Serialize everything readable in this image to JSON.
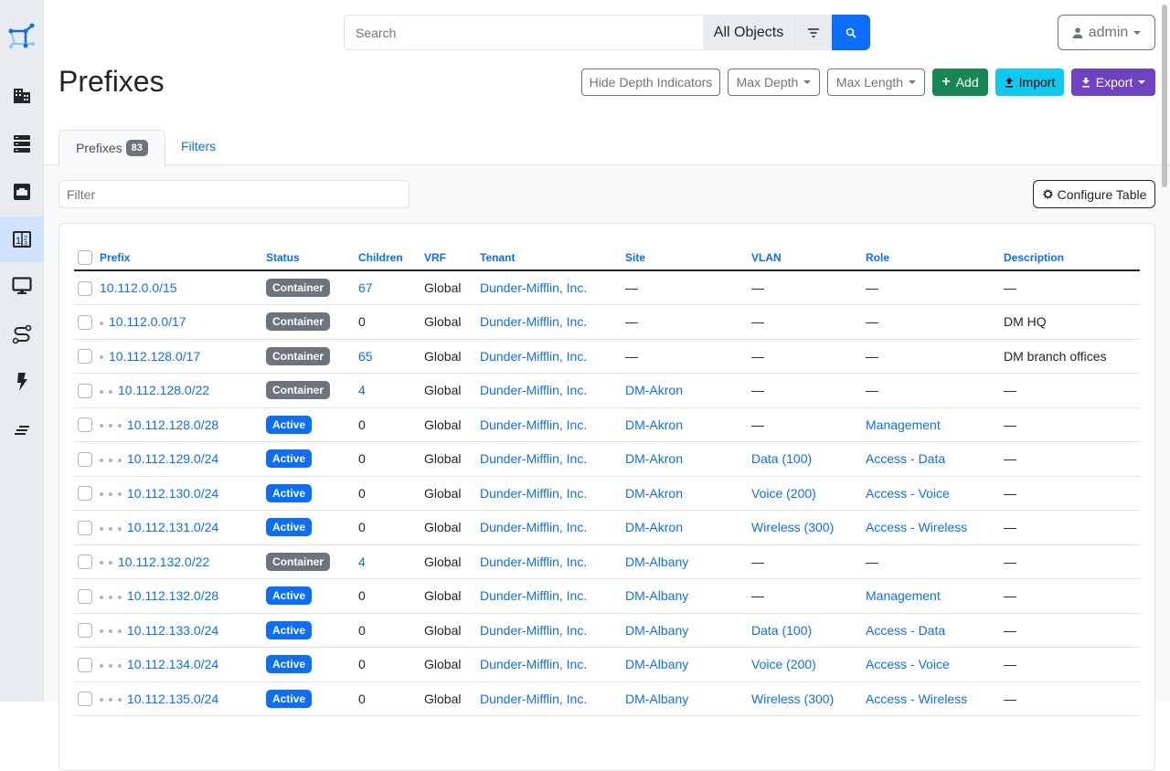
{
  "search": {
    "placeholder": "Search",
    "scope": "All Objects"
  },
  "user": {
    "name": "admin"
  },
  "page": {
    "title": "Prefixes"
  },
  "actions": {
    "hide_depth": "Hide Depth Indicators",
    "max_depth": "Max Depth",
    "max_length": "Max Length",
    "add": "Add",
    "import": "Import",
    "export": "Export"
  },
  "tabs": {
    "prefixes": "Prefixes",
    "count": "83",
    "filters": "Filters"
  },
  "filter": {
    "placeholder": "Filter"
  },
  "configure": "Configure Table",
  "colors": {
    "container": "#6c757d",
    "active": "#0d6efd",
    "add": "#198754",
    "import": "#0dcaf0",
    "export": "#6f42c1"
  },
  "sidebar": [
    "logo-icon",
    "organization-icon",
    "devices-icon",
    "connections-icon",
    "ipam-icon",
    "virtualization-icon",
    "circuits-icon",
    "power-icon",
    "other-icon"
  ],
  "table": {
    "headers": [
      "Prefix",
      "Status",
      "Children",
      "VRF",
      "Tenant",
      "Site",
      "VLAN",
      "Role",
      "Description"
    ],
    "rows": [
      {
        "depth": 0,
        "prefix": "10.112.0.0/15",
        "status": "Container",
        "children": "67",
        "vrf": "Global",
        "tenant": "Dunder-Mifflin, Inc.",
        "site": "—",
        "vlan": "—",
        "role": "—",
        "description": "—"
      },
      {
        "depth": 1,
        "prefix": "10.112.0.0/17",
        "status": "Container",
        "children": "0",
        "vrf": "Global",
        "tenant": "Dunder-Mifflin, Inc.",
        "site": "—",
        "vlan": "—",
        "role": "—",
        "description": "DM HQ"
      },
      {
        "depth": 1,
        "prefix": "10.112.128.0/17",
        "status": "Container",
        "children": "65",
        "vrf": "Global",
        "tenant": "Dunder-Mifflin, Inc.",
        "site": "—",
        "vlan": "—",
        "role": "—",
        "description": "DM branch offices"
      },
      {
        "depth": 2,
        "prefix": "10.112.128.0/22",
        "status": "Container",
        "children": "4",
        "vrf": "Global",
        "tenant": "Dunder-Mifflin, Inc.",
        "site": "DM-Akron",
        "vlan": "—",
        "role": "—",
        "description": "—"
      },
      {
        "depth": 3,
        "prefix": "10.112.128.0/28",
        "status": "Active",
        "children": "0",
        "vrf": "Global",
        "tenant": "Dunder-Mifflin, Inc.",
        "site": "DM-Akron",
        "vlan": "—",
        "role": "Management",
        "description": "—"
      },
      {
        "depth": 3,
        "prefix": "10.112.129.0/24",
        "status": "Active",
        "children": "0",
        "vrf": "Global",
        "tenant": "Dunder-Mifflin, Inc.",
        "site": "DM-Akron",
        "vlan": "Data (100)",
        "role": "Access - Data",
        "description": "—"
      },
      {
        "depth": 3,
        "prefix": "10.112.130.0/24",
        "status": "Active",
        "children": "0",
        "vrf": "Global",
        "tenant": "Dunder-Mifflin, Inc.",
        "site": "DM-Akron",
        "vlan": "Voice (200)",
        "role": "Access - Voice",
        "description": "—"
      },
      {
        "depth": 3,
        "prefix": "10.112.131.0/24",
        "status": "Active",
        "children": "0",
        "vrf": "Global",
        "tenant": "Dunder-Mifflin, Inc.",
        "site": "DM-Akron",
        "vlan": "Wireless (300)",
        "role": "Access - Wireless",
        "description": "—"
      },
      {
        "depth": 2,
        "prefix": "10.112.132.0/22",
        "status": "Container",
        "children": "4",
        "vrf": "Global",
        "tenant": "Dunder-Mifflin, Inc.",
        "site": "DM-Albany",
        "vlan": "—",
        "role": "—",
        "description": "—"
      },
      {
        "depth": 3,
        "prefix": "10.112.132.0/28",
        "status": "Active",
        "children": "0",
        "vrf": "Global",
        "tenant": "Dunder-Mifflin, Inc.",
        "site": "DM-Albany",
        "vlan": "—",
        "role": "Management",
        "description": "—"
      },
      {
        "depth": 3,
        "prefix": "10.112.133.0/24",
        "status": "Active",
        "children": "0",
        "vrf": "Global",
        "tenant": "Dunder-Mifflin, Inc.",
        "site": "DM-Albany",
        "vlan": "Data (100)",
        "role": "Access - Data",
        "description": "—"
      },
      {
        "depth": 3,
        "prefix": "10.112.134.0/24",
        "status": "Active",
        "children": "0",
        "vrf": "Global",
        "tenant": "Dunder-Mifflin, Inc.",
        "site": "DM-Albany",
        "vlan": "Voice (200)",
        "role": "Access - Voice",
        "description": "—"
      },
      {
        "depth": 3,
        "prefix": "10.112.135.0/24",
        "status": "Active",
        "children": "0",
        "vrf": "Global",
        "tenant": "Dunder-Mifflin, Inc.",
        "site": "DM-Albany",
        "vlan": "Wireless (300)",
        "role": "Access - Wireless",
        "description": "—"
      }
    ]
  }
}
